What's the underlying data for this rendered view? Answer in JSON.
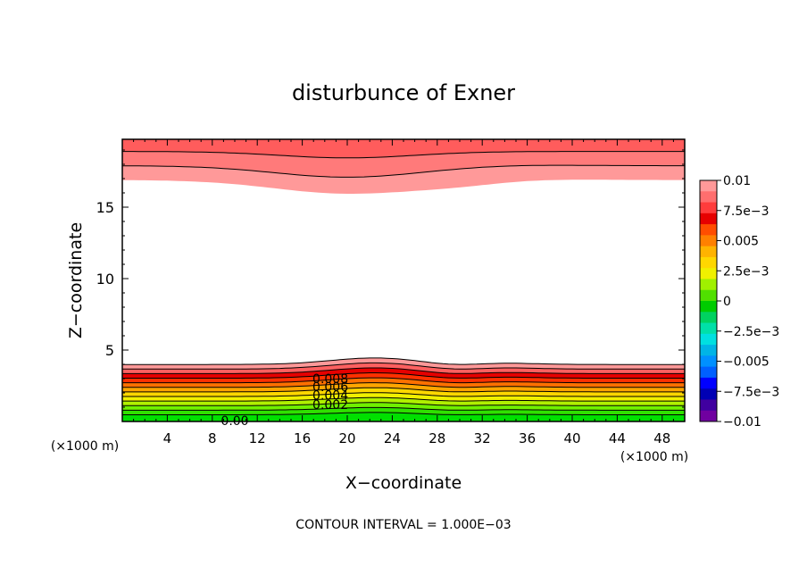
{
  "chart_data": {
    "type": "contour",
    "title": "disturbunce of Exner",
    "xlabel": "X−coordinate",
    "ylabel": "Z−coordinate",
    "x_unit_left": "(×1000 m)",
    "x_unit_right": "(×1000 m)",
    "footer": "CONTOUR INTERVAL = 1.000E−03",
    "xlim": [
      0,
      50
    ],
    "ylim": [
      0,
      19.75
    ],
    "x_ticks": [
      4,
      8,
      12,
      16,
      20,
      24,
      28,
      32,
      36,
      40,
      44,
      48
    ],
    "y_ticks": [
      5,
      10,
      15
    ],
    "contour_interval": 0.001,
    "contour_labels": [
      {
        "text": "0.008",
        "x": 18.5,
        "z": 3.0
      },
      {
        "text": "0.006",
        "x": 18.5,
        "z": 2.45
      },
      {
        "text": "0.004",
        "x": 18.5,
        "z": 1.85
      },
      {
        "text": "0.002",
        "x": 18.5,
        "z": 1.2
      },
      {
        "text": "0.00",
        "x": 10.0,
        "z": 0.05
      }
    ],
    "colorbar": {
      "range": [
        -0.01,
        0.01
      ],
      "tick_labels": [
        "0.01",
        "7.5e−3",
        "0.005",
        "2.5e−3",
        "0",
        "−2.5e−3",
        "−0.005",
        "−7.5e−3",
        "−0.01"
      ],
      "colors": [
        "#ff9999",
        "#ff6e6e",
        "#ff3c3c",
        "#e60000",
        "#ff4d00",
        "#ff8000",
        "#ffb300",
        "#ffd700",
        "#f0f000",
        "#a0f000",
        "#50e000",
        "#00cc00",
        "#00d260",
        "#00e0a8",
        "#00e0e0",
        "#00b4e6",
        "#0090ff",
        "#0060ff",
        "#0000ff",
        "#0000b4",
        "#4000a0",
        "#7000a0"
      ]
    },
    "top_band": {
      "description_levels": [
        0.008,
        0.009,
        0.01
      ],
      "z_lower_min": 15.9,
      "z_lower_max": 16.9
    },
    "bottom_band": {
      "levels": [
        0.0,
        0.001,
        0.002,
        0.003,
        0.004,
        0.005,
        0.006,
        0.007,
        0.008,
        0.009
      ],
      "z_top": 4.0
    }
  }
}
